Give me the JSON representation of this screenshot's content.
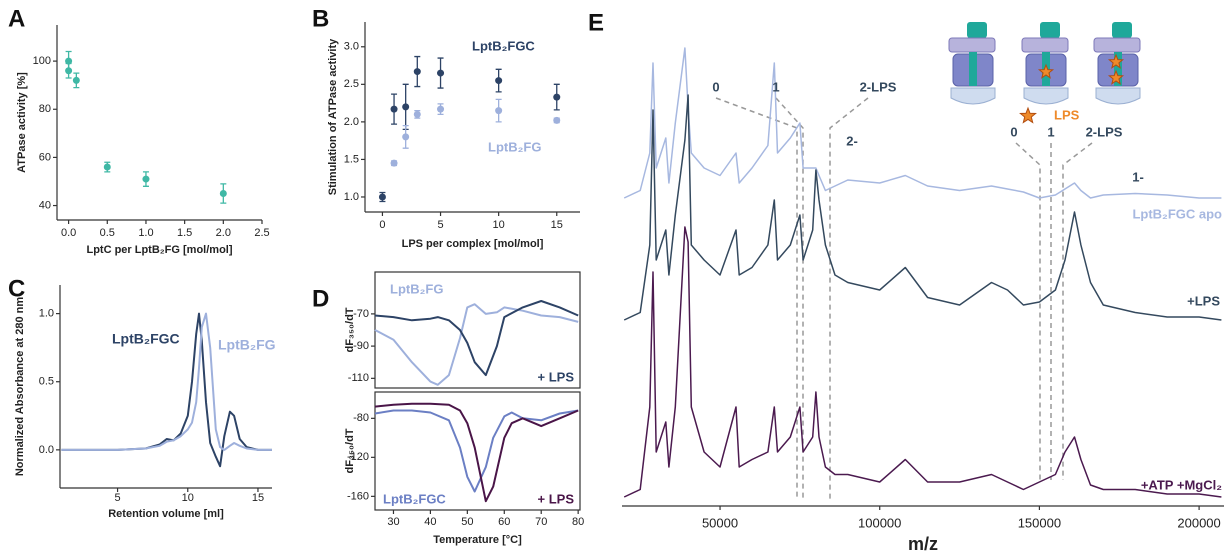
{
  "chart_data": [
    {
      "type": "scatter",
      "panel": "A",
      "x": [
        0,
        0,
        0.1,
        0.5,
        1,
        2
      ],
      "values": [
        100,
        96,
        92,
        56,
        51,
        45
      ],
      "errors": [
        4,
        3,
        3,
        2,
        3,
        4
      ],
      "color": "#3fb8a5",
      "xlim": [
        -0.15,
        2.5
      ],
      "xticks": [
        {
          "value": 0,
          "label": "0.0"
        },
        {
          "value": 0.5,
          "label": "0.5"
        },
        {
          "value": 1,
          "label": "1.0"
        },
        {
          "value": 1.5,
          "label": "1.5"
        },
        {
          "value": 2,
          "label": "2.0"
        },
        {
          "value": 2.5,
          "label": "2.5"
        }
      ],
      "ylim": [
        34,
        115
      ],
      "yticks": [
        40,
        60,
        80,
        100
      ],
      "xlabel": "LptC per LptB₂FG [mol/mol]",
      "ylabel": "ATPase activity [%]"
    },
    {
      "type": "scatter",
      "panel": "B",
      "x": [
        0,
        1,
        2,
        3,
        5,
        10,
        15
      ],
      "series": [
        {
          "name": "LptB₂FGC",
          "color": "#2d4366",
          "values": [
            1.0,
            2.17,
            2.2,
            2.67,
            2.65,
            2.55,
            2.33
          ],
          "errors": [
            0.06,
            0.2,
            0.3,
            0.2,
            0.2,
            0.15,
            0.17
          ]
        },
        {
          "name": "LptB₂FG",
          "color": "#9eb0dc",
          "values": [
            null,
            1.45,
            1.8,
            2.1,
            2.17,
            2.15,
            2.02
          ],
          "errors": [
            null,
            0.03,
            0.15,
            0.05,
            0.07,
            0.15,
            0.03
          ]
        }
      ],
      "xlim": [
        -1.5,
        17
      ],
      "xticks": [
        0,
        5,
        10,
        15
      ],
      "ylim": [
        0.8,
        3.33
      ],
      "yticks": [
        {
          "value": 1,
          "label": "1.0"
        },
        {
          "value": 1.5,
          "label": "1.5"
        },
        {
          "value": 2,
          "label": "2.0"
        },
        {
          "value": 2.5,
          "label": "2.5"
        },
        {
          "value": 3,
          "label": "3.0"
        }
      ],
      "xlabel": "LPS per complex [mol/mol]",
      "ylabel": "Stimulation of ATPase activity"
    },
    {
      "type": "line",
      "panel": "C",
      "x": [
        1,
        3,
        5,
        7,
        8,
        8.5,
        9,
        9.5,
        10,
        10.3,
        10.6,
        10.8,
        11,
        11.3,
        11.6,
        12,
        12.3,
        12.6,
        13,
        13.3,
        13.7,
        14.2,
        15,
        16
      ],
      "series": [
        {
          "name": "LptB₂FGC",
          "color": "#2d4366",
          "values": [
            0,
            0,
            0,
            0.01,
            0.04,
            0.08,
            0.07,
            0.12,
            0.25,
            0.5,
            0.85,
            1.0,
            0.8,
            0.35,
            0.05,
            -0.05,
            -0.12,
            0.1,
            0.28,
            0.25,
            0.08,
            0.02,
            0,
            0
          ]
        },
        {
          "name": "LptB₂FG",
          "color": "#9eb0dc",
          "values": [
            0,
            0,
            0,
            0.01,
            0.03,
            0.06,
            0.07,
            0.1,
            0.15,
            0.2,
            0.35,
            0.6,
            0.9,
            1.0,
            0.75,
            0.15,
            0.02,
            0,
            0.03,
            0.05,
            0.03,
            0.01,
            0,
            0
          ]
        }
      ],
      "xlim": [
        0.9,
        16
      ],
      "xticks": [
        5,
        10,
        15
      ],
      "ylim": [
        -0.28,
        1.21
      ],
      "yticks": [
        {
          "value": 0,
          "label": "0.0"
        },
        {
          "value": 0.5,
          "label": "0.5"
        },
        {
          "value": 1,
          "label": "1.0"
        }
      ],
      "xlabel": "Retention volume [ml]",
      "ylabel": "Normalized Absorbance at 280 nm"
    },
    {
      "type": "line",
      "panel": "D",
      "x": [
        25,
        30,
        35,
        40,
        42,
        45,
        48,
        50,
        52,
        55,
        58,
        60,
        65,
        70,
        75,
        80
      ],
      "series": [
        {
          "name": "LptB₂FG",
          "color": "#9eb0dc",
          "values": [
            -80,
            -86,
            -100,
            -112,
            -114,
            -108,
            -85,
            -66,
            -64,
            -70,
            -69,
            -66,
            -68,
            -71,
            -72,
            -75
          ]
        },
        {
          "name": "+ LPS",
          "color": "#2d4366",
          "values": [
            -71,
            -72,
            -74,
            -73,
            -72,
            -74,
            -80,
            -88,
            -100,
            -108,
            -90,
            -72,
            -66,
            -62,
            -66,
            -71
          ]
        }
      ],
      "xlim": [
        25,
        80.5
      ],
      "ylim": [
        -116,
        -44
      ],
      "yticks": [
        -70,
        -90,
        -110
      ],
      "ylabel": "dF₃₅₀/dT"
    },
    {
      "type": "line",
      "x": [
        25,
        30,
        35,
        40,
        45,
        48,
        50,
        52,
        55,
        57,
        60,
        62,
        65,
        70,
        75,
        80
      ],
      "series": [
        {
          "name": "LptB₂FGC",
          "color": "#6b7fc4",
          "values": [
            -75,
            -72,
            -72,
            -74,
            -82,
            -110,
            -140,
            -155,
            -130,
            -100,
            -78,
            -74,
            -80,
            -82,
            -75,
            -72
          ]
        },
        {
          "name": "+ LPS",
          "color": "#4a1548",
          "values": [
            -68,
            -66,
            -65,
            -65,
            -66,
            -72,
            -85,
            -110,
            -165,
            -150,
            -100,
            -85,
            -80,
            -88,
            -80,
            -72
          ]
        }
      ],
      "xlim": [
        25,
        80.5
      ],
      "xticks": [
        30,
        40,
        50,
        60,
        70,
        80
      ],
      "ylim": [
        -174,
        -53
      ],
      "yticks": [
        -80,
        -120,
        -160
      ],
      "xlabel": "Temperature [°C]",
      "ylabel": "dF₃₅₀/dT"
    },
    {
      "type": "spectrum",
      "panel": "E",
      "x": [
        20000,
        25000,
        28000,
        29000,
        30000,
        33000,
        34000,
        36000,
        39000,
        40000,
        41000,
        45000,
        50000,
        55000,
        56000,
        60000,
        65000,
        67000,
        68000,
        72000,
        75000,
        76000,
        79000,
        80000,
        81000,
        83000,
        86000,
        90000,
        100000,
        108000,
        115000,
        125000,
        135000,
        140000,
        145000,
        150000,
        155000,
        158000,
        161000,
        163000,
        166000,
        170000,
        180000,
        190000,
        200000,
        207000
      ],
      "series": [
        {
          "name": "LptB₂FGC apo",
          "color": "#a7b8e0",
          "values": [
            0,
            0.05,
            0.3,
            0.9,
            0.2,
            0.4,
            0.1,
            0.5,
            1.0,
            0.6,
            0.3,
            0.2,
            0.15,
            0.3,
            0.1,
            0.2,
            0.35,
            0.9,
            0.3,
            0.4,
            0.5,
            0.2,
            0.2,
            0.2,
            0.15,
            0.05,
            0.08,
            0.12,
            0.1,
            0.15,
            0.08,
            0.05,
            0.08,
            0.06,
            0.04,
            0,
            0.02,
            0.06,
            0.1,
            0.05,
            0,
            0.02,
            0.03,
            0.02,
            0,
            0
          ]
        },
        {
          "name": "+LPS",
          "color": "#34495e",
          "values": [
            0,
            0.05,
            0.5,
            1.4,
            0.4,
            0.6,
            0.3,
            0.7,
            1.2,
            1.5,
            0.5,
            0.4,
            0.3,
            0.6,
            0.3,
            0.35,
            0.5,
            0.8,
            0.4,
            0.5,
            0.7,
            0.4,
            0.6,
            1.0,
            0.8,
            0.5,
            0.3,
            0.25,
            0.2,
            0.35,
            0.15,
            0.1,
            0.25,
            0.2,
            0.1,
            0.12,
            0.2,
            0.4,
            0.72,
            0.5,
            0.25,
            0.1,
            0.05,
            0.02,
            0.02,
            0
          ]
        },
        {
          "name": "+ATP +MgCl₂",
          "color": "#4b1a4f",
          "values": [
            0,
            0.05,
            0.6,
            1.5,
            0.3,
            0.5,
            0.2,
            0.6,
            1.8,
            1.7,
            0.6,
            0.3,
            0.2,
            0.6,
            0.2,
            0.25,
            0.3,
            0.6,
            0.3,
            0.4,
            0.6,
            0.3,
            0.4,
            0.7,
            0.4,
            0.2,
            0.15,
            0.15,
            0.1,
            0.25,
            0.1,
            0.1,
            0.15,
            0.1,
            0.05,
            0.1,
            0.15,
            0.3,
            0.4,
            0.25,
            0.08,
            0.05,
            0.05,
            0.02,
            0.02,
            0
          ]
        }
      ],
      "xlim": [
        19300,
        207800
      ],
      "xticks": [
        50000,
        100000,
        150000,
        200000
      ],
      "xlabel": "m/z",
      "annotations": [
        "0",
        "1",
        "2-LPS",
        "2-",
        "0",
        "1",
        "2-LPS",
        "1-",
        "LPS"
      ]
    }
  ]
}
